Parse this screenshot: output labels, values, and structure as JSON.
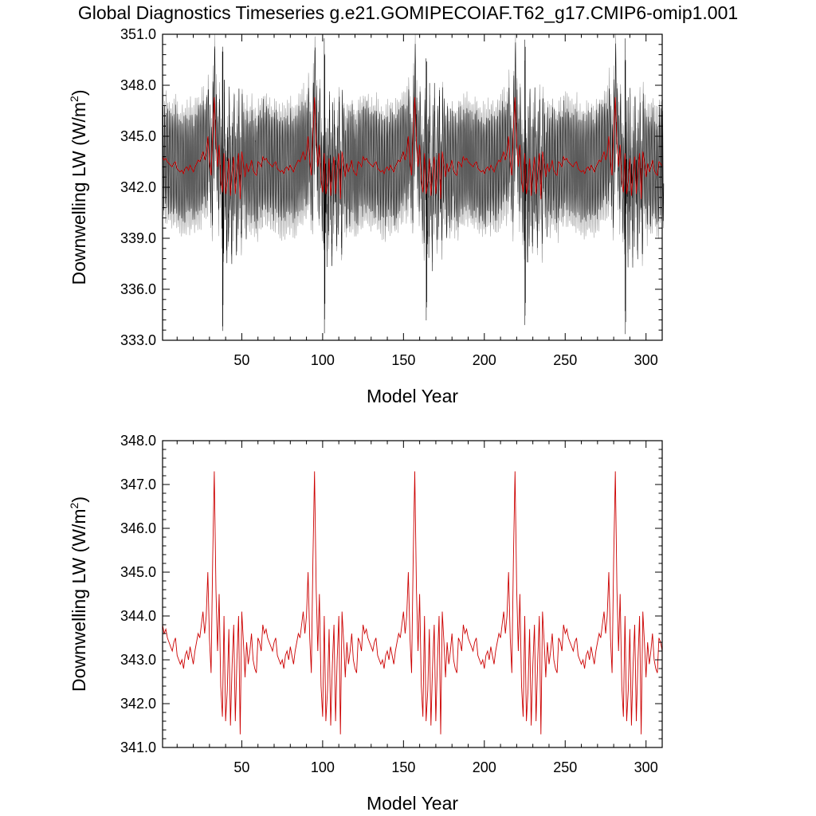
{
  "title": "Global Diagnostics Timeseries g.e21.GOMIPECOIAF.T62_g17.CMIP6-omip1.001",
  "colors": {
    "annual": "#cc0000",
    "monthly_run_a": "#000000",
    "monthly_run_b": "#999999"
  },
  "chart_data": [
    {
      "type": "line",
      "title": "",
      "xlabel": "Model Year",
      "ylabel": "Downwelling LW (W/m",
      "ylabel_sup": "2",
      "ylabel_close": ")",
      "xlim": [
        1,
        310
      ],
      "ylim": [
        333.0,
        351.0
      ],
      "xticks": [
        "50",
        "100",
        "150",
        "200",
        "250",
        "300"
      ],
      "yticks": [
        "333.0",
        "336.0",
        "339.0",
        "342.0",
        "345.0",
        "348.0",
        "351.0"
      ],
      "forcing_cycle_years": 62,
      "series": [
        {
          "color": "#999999",
          "kind": "monthly",
          "mean_annual": 343.2,
          "seasonal_half_range": 3.7
        },
        {
          "color": "#000000",
          "kind": "monthly",
          "mean_annual": 343.3,
          "seasonal_half_range": 2.9,
          "spike_years": [
            38,
            101,
            164,
            225,
            287
          ],
          "spike_max": 350.8,
          "spike_min": 333.3
        },
        {
          "color": "#cc0000",
          "kind": "annual"
        }
      ]
    },
    {
      "type": "line",
      "title": "",
      "xlabel": "Model Year",
      "ylabel": "Downwelling LW (W/m",
      "ylabel_sup": "2",
      "ylabel_close": ")",
      "xlim": [
        1,
        310
      ],
      "ylim": [
        341.0,
        348.0
      ],
      "xticks": [
        "50",
        "100",
        "150",
        "200",
        "250",
        "300"
      ],
      "yticks": [
        "341.0",
        "342.0",
        "343.0",
        "344.0",
        "345.0",
        "346.0",
        "347.0",
        "348.0"
      ],
      "series": [
        {
          "color": "#cc0000",
          "kind": "annual",
          "cycle_start_year": 1,
          "cycle_length": 62,
          "cycles": 5,
          "cycle_values": [
            343.8,
            343.6,
            343.7,
            343.5,
            343.4,
            343.3,
            343.2,
            343.4,
            343.5,
            343.1,
            343.0,
            342.9,
            343.0,
            342.8,
            343.1,
            343.2,
            343.0,
            343.3,
            343.1,
            342.9,
            343.2,
            343.4,
            343.6,
            343.5,
            343.8,
            344.1,
            343.6,
            344.0,
            345.0,
            343.5,
            342.7,
            345.3,
            347.3,
            344.6,
            343.2,
            344.5,
            342.4,
            341.7,
            344.0,
            341.6,
            342.3,
            343.7,
            341.5,
            342.9,
            343.8,
            341.6,
            343.0,
            344.0,
            341.3,
            344.1,
            343.4,
            342.6,
            343.4,
            342.9,
            343.2,
            343.6,
            343.0,
            342.8,
            342.7,
            343.5,
            343.4,
            343.2
          ]
        }
      ]
    }
  ]
}
